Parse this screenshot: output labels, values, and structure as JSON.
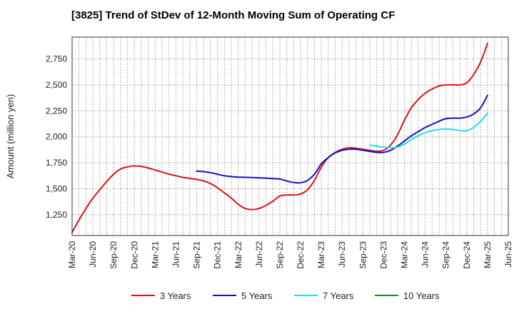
{
  "chart_data": {
    "type": "line",
    "title": "[3825]  Trend of StDev of 12-Month Moving Sum of Operating CF",
    "xlabel": "",
    "ylabel": "Amount (million yen)",
    "ylim": [
      1050,
      2960
    ],
    "yticks": [
      1250,
      1500,
      1750,
      2000,
      2250,
      2500,
      2750
    ],
    "ytick_labels": [
      "1,250",
      "1,500",
      "1,750",
      "2,000",
      "2,250",
      "2,500",
      "2,750"
    ],
    "xlim": [
      0,
      63
    ],
    "xticks": [
      0,
      3,
      6,
      9,
      12,
      15,
      18,
      21,
      24,
      27,
      30,
      33,
      36,
      39,
      42,
      45,
      48,
      51,
      54,
      57,
      60,
      63
    ],
    "xtick_labels": [
      "Mar-20",
      "Jun-20",
      "Sep-20",
      "Dec-20",
      "Mar-21",
      "Jun-21",
      "Sep-21",
      "Dec-21",
      "Mar-22",
      "Jun-22",
      "Sep-22",
      "Dec-22",
      "Mar-23",
      "Jun-23",
      "Sep-23",
      "Dec-23",
      "Mar-24",
      "Jun-24",
      "Sep-24",
      "Dec-24",
      "Mar-25",
      "Jun-25"
    ],
    "grid": true,
    "legend_position": "bottom",
    "series": [
      {
        "name": "3 Years",
        "color": "#dd1111",
        "x": [
          0,
          1,
          2,
          3,
          4,
          5,
          6,
          7,
          8,
          9,
          10,
          11,
          12,
          13,
          14,
          15,
          16,
          17,
          18,
          19,
          20,
          21,
          22,
          23,
          24,
          25,
          26,
          27,
          28,
          29,
          30,
          31,
          32,
          33,
          34,
          35,
          36,
          37,
          38,
          39,
          40,
          41,
          42,
          43,
          44,
          45,
          46,
          47,
          48,
          49,
          50,
          51,
          52,
          53,
          54,
          55,
          56,
          57,
          58,
          59,
          60
        ],
        "values": [
          1080,
          1200,
          1310,
          1410,
          1490,
          1570,
          1640,
          1690,
          1710,
          1720,
          1715,
          1700,
          1680,
          1660,
          1640,
          1625,
          1610,
          1600,
          1590,
          1575,
          1550,
          1510,
          1460,
          1410,
          1350,
          1310,
          1300,
          1310,
          1340,
          1380,
          1430,
          1440,
          1440,
          1450,
          1490,
          1580,
          1710,
          1800,
          1850,
          1880,
          1895,
          1890,
          1880,
          1870,
          1860,
          1870,
          1920,
          2020,
          2160,
          2280,
          2360,
          2420,
          2460,
          2490,
          2500,
          2500,
          2500,
          2520,
          2600,
          2720,
          2900
        ]
      },
      {
        "name": "5 Years",
        "color": "#1111cc",
        "x": [
          18,
          19,
          20,
          21,
          22,
          23,
          24,
          25,
          26,
          27,
          28,
          29,
          30,
          31,
          32,
          33,
          34,
          35,
          36,
          37,
          38,
          39,
          40,
          41,
          42,
          43,
          44,
          45,
          46,
          47,
          48,
          49,
          50,
          51,
          52,
          53,
          54,
          55,
          56,
          57,
          58,
          59,
          60
        ],
        "values": [
          1670,
          1665,
          1655,
          1640,
          1625,
          1617,
          1612,
          1610,
          1608,
          1605,
          1602,
          1598,
          1594,
          1575,
          1560,
          1558,
          1580,
          1640,
          1740,
          1800,
          1845,
          1870,
          1880,
          1880,
          1870,
          1860,
          1850,
          1850,
          1870,
          1910,
          1960,
          2010,
          2050,
          2090,
          2120,
          2150,
          2175,
          2180,
          2180,
          2190,
          2220,
          2280,
          2400
        ]
      },
      {
        "name": "7 Years",
        "color": "#22ddee",
        "x": [
          43,
          44,
          45,
          46,
          47,
          48,
          49,
          50,
          51,
          52,
          53,
          54,
          55,
          56,
          57,
          58,
          59,
          60
        ],
        "values": [
          1920,
          1910,
          1900,
          1895,
          1900,
          1930,
          1975,
          2010,
          2040,
          2060,
          2070,
          2075,
          2070,
          2060,
          2060,
          2090,
          2150,
          2225
        ]
      },
      {
        "name": "10 Years",
        "color": "#228822",
        "x": [],
        "values": []
      }
    ]
  }
}
